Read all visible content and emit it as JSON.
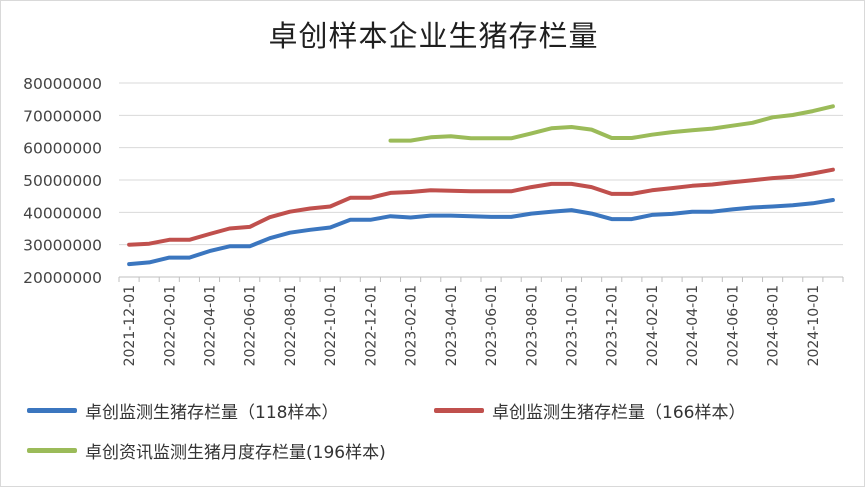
{
  "chart_data": {
    "type": "line",
    "title": "卓创样本企业生猪存栏量",
    "xlabel": "",
    "ylabel": "",
    "ylim": [
      20000000,
      80000000
    ],
    "yticks": [
      "20000000",
      "30000000",
      "40000000",
      "50000000",
      "60000000",
      "70000000",
      "80000000"
    ],
    "xticks": [
      "2021-12-01",
      "2022-02-01",
      "2022-04-01",
      "2022-06-01",
      "2022-08-01",
      "2022-10-01",
      "2022-12-01",
      "2023-02-01",
      "2023-04-01",
      "2023-06-01",
      "2023-08-01",
      "2023-10-01",
      "2023-12-01",
      "2024-02-01",
      "2024-04-01",
      "2024-06-01",
      "2024-08-01",
      "2024-10-01"
    ],
    "x": [
      "2021-12-01",
      "2022-01-01",
      "2022-02-01",
      "2022-03-01",
      "2022-04-01",
      "2022-05-01",
      "2022-06-01",
      "2022-07-01",
      "2022-08-01",
      "2022-09-01",
      "2022-10-01",
      "2022-11-01",
      "2022-12-01",
      "2023-01-01",
      "2023-02-01",
      "2023-03-01",
      "2023-04-01",
      "2023-05-01",
      "2023-06-01",
      "2023-07-01",
      "2023-08-01",
      "2023-09-01",
      "2023-10-01",
      "2023-11-01",
      "2023-12-01",
      "2024-01-01",
      "2024-02-01",
      "2024-03-01",
      "2024-04-01",
      "2024-05-01",
      "2024-06-01",
      "2024-07-01",
      "2024-08-01",
      "2024-09-01",
      "2024-10-01",
      "2024-11-01"
    ],
    "grid": true,
    "legend_position": "bottom",
    "series": [
      {
        "name": "卓创监测生猪存栏量（118样本）",
        "color": "#3b76bf",
        "values": [
          24000000,
          24500000,
          26000000,
          26000000,
          28000000,
          29500000,
          29500000,
          32000000,
          33700000,
          34600000,
          35300000,
          37700000,
          37700000,
          38800000,
          38400000,
          39000000,
          39000000,
          38800000,
          38600000,
          38600000,
          39600000,
          40200000,
          40700000,
          39600000,
          37900000,
          37900000,
          39200000,
          39500000,
          40200000,
          40200000,
          40900000,
          41500000,
          41800000,
          42200000,
          42800000,
          43800000
        ]
      },
      {
        "name": "卓创监测生猪存栏量（166样本）",
        "color": "#c0504d",
        "values": [
          30000000,
          30300000,
          31500000,
          31500000,
          33300000,
          35000000,
          35500000,
          38500000,
          40200000,
          41200000,
          41800000,
          44500000,
          44500000,
          46000000,
          46300000,
          46800000,
          46700000,
          46500000,
          46500000,
          46500000,
          47800000,
          48800000,
          48800000,
          47800000,
          45700000,
          45700000,
          46800000,
          47500000,
          48200000,
          48600000,
          49300000,
          49900000,
          50600000,
          51000000,
          52000000,
          53200000
        ]
      },
      {
        "name": "卓创资讯监测生猪月度存栏量(196样本)",
        "color": "#9bbb59",
        "values": [
          null,
          null,
          null,
          null,
          null,
          null,
          null,
          null,
          null,
          null,
          null,
          null,
          null,
          62200000,
          62200000,
          63200000,
          63500000,
          62900000,
          62900000,
          62900000,
          64400000,
          66000000,
          66400000,
          65600000,
          63000000,
          63000000,
          64000000,
          64800000,
          65400000,
          65900000,
          66800000,
          67700000,
          69400000,
          70100000,
          71300000,
          72800000
        ]
      }
    ]
  }
}
